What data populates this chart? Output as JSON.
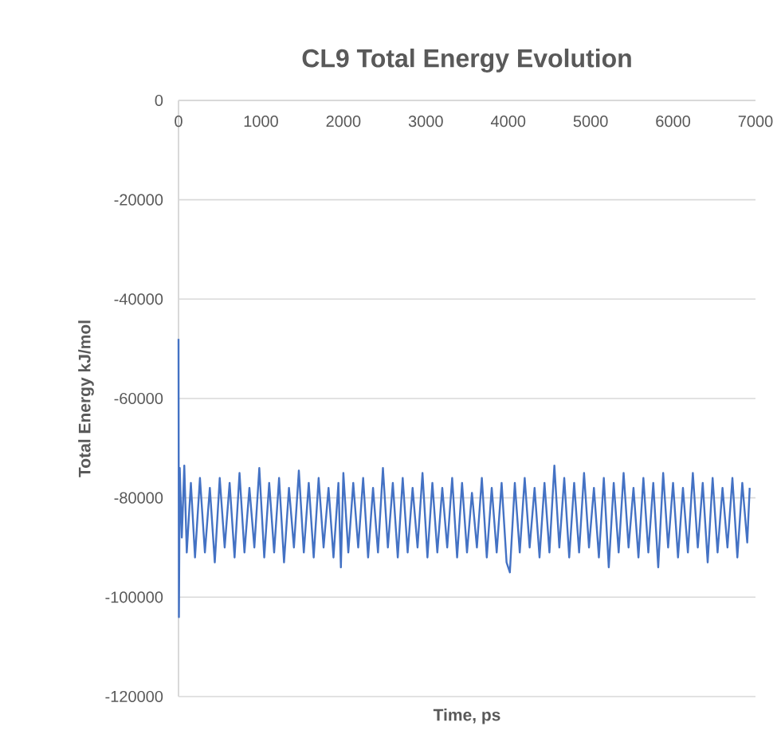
{
  "chart_data": {
    "type": "line",
    "title": "CL9 Total Energy Evolution",
    "xlabel": "Time, ps",
    "ylabel": "Total Energy kJ/mol",
    "xlim": [
      0,
      7000
    ],
    "xticks": [
      0,
      1000,
      2000,
      3000,
      4000,
      5000,
      6000,
      7000
    ],
    "ylim": [
      -120000,
      0
    ],
    "yticks": [
      -120000,
      -100000,
      -80000,
      -60000,
      -40000,
      -20000,
      0
    ],
    "grid": "y",
    "marker": "none",
    "line_style": "solid",
    "series": [
      {
        "color": "#4472c4",
        "x": [
          0,
          5,
          15,
          40,
          70,
          100,
          150,
          200,
          260,
          320,
          380,
          440,
          500,
          560,
          620,
          680,
          740,
          800,
          860,
          920,
          980,
          1040,
          1100,
          1160,
          1220,
          1280,
          1340,
          1400,
          1460,
          1520,
          1580,
          1640,
          1700,
          1760,
          1820,
          1880,
          1940,
          1970,
          2000,
          2060,
          2120,
          2180,
          2240,
          2300,
          2360,
          2420,
          2480,
          2540,
          2600,
          2660,
          2720,
          2780,
          2840,
          2900,
          2960,
          3020,
          3080,
          3140,
          3200,
          3260,
          3320,
          3380,
          3440,
          3500,
          3560,
          3620,
          3680,
          3740,
          3800,
          3860,
          3920,
          3980,
          4020,
          4080,
          4140,
          4200,
          4260,
          4320,
          4380,
          4440,
          4500,
          4560,
          4620,
          4680,
          4740,
          4800,
          4860,
          4920,
          4980,
          5040,
          5100,
          5160,
          5220,
          5280,
          5340,
          5400,
          5460,
          5520,
          5580,
          5640,
          5700,
          5760,
          5820,
          5880,
          5940,
          6000,
          6060,
          6120,
          6180,
          6240,
          6300,
          6360,
          6420,
          6480,
          6540,
          6600,
          6660,
          6720,
          6780,
          6840,
          6900,
          6930
        ],
        "values": [
          -48000,
          -104000,
          -74000,
          -88000,
          -73500,
          -91000,
          -77000,
          -92000,
          -76000,
          -91000,
          -78000,
          -93000,
          -76000,
          -90000,
          -77000,
          -92000,
          -75000,
          -91000,
          -78000,
          -90000,
          -74000,
          -92000,
          -77000,
          -91000,
          -76000,
          -93000,
          -78000,
          -90000,
          -74500,
          -91000,
          -77000,
          -92000,
          -76000,
          -90000,
          -78000,
          -92000,
          -77000,
          -94000,
          -75000,
          -91000,
          -77000,
          -90000,
          -76000,
          -92000,
          -78000,
          -91000,
          -74000,
          -90000,
          -77000,
          -92000,
          -76000,
          -91000,
          -78000,
          -90000,
          -75000,
          -92000,
          -77000,
          -91000,
          -78000,
          -90000,
          -76000,
          -92000,
          -77000,
          -91000,
          -79000,
          -90000,
          -76000,
          -92000,
          -78000,
          -91000,
          -77000,
          -93000,
          -95000,
          -77000,
          -91000,
          -76000,
          -90000,
          -78000,
          -92000,
          -77000,
          -91000,
          -73500,
          -90000,
          -76000,
          -92000,
          -77000,
          -91000,
          -75000,
          -90000,
          -78000,
          -92000,
          -76000,
          -94000,
          -77000,
          -91000,
          -75000,
          -90000,
          -78000,
          -92000,
          -76000,
          -91000,
          -77000,
          -94000,
          -75000,
          -90000,
          -77000,
          -92000,
          -78000,
          -91000,
          -75000,
          -90000,
          -77000,
          -93000,
          -76000,
          -91000,
          -78000,
          -90000,
          -76000,
          -92000,
          -77000,
          -89000,
          -78000
        ]
      }
    ]
  }
}
